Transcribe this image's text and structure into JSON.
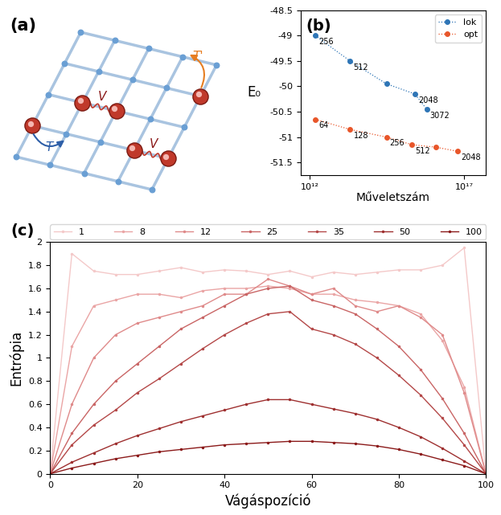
{
  "diagram": {
    "panel_label": "(a)",
    "interaction_labels": [
      "V",
      "V"
    ],
    "hopping_labels": [
      "T",
      "T'"
    ]
  },
  "chart_data": [
    {
      "type": "line",
      "panel_label": "(b)",
      "x_label": "Műveletszám",
      "y_label": "E₀",
      "log": "x",
      "legend": "upper right",
      "grid": false,
      "xlim": [
        500000000000.0,
        5e+17
      ],
      "xticks": [
        {
          "value": 1000000000000.0,
          "label": "10¹²"
        },
        {
          "value": 1e+17,
          "label": "10¹⁷"
        }
      ],
      "ylim": [
        -51.75,
        -48.5
      ],
      "yticks": [
        -51.5,
        -51,
        -50.5,
        -50,
        -49.5,
        -49,
        -48.5
      ],
      "series": [
        {
          "name": "lok",
          "color": "#2e75b6",
          "marker": "o",
          "line_style": "dotted",
          "x": [
            1500000000000.0,
            20000000000000.0,
            300000000000000.0,
            2500000000000000.0,
            6000000000000000.0
          ],
          "values": [
            -49.0,
            -49.5,
            -49.95,
            -50.15,
            -50.45
          ],
          "point_labels": [
            256,
            512,
            null,
            2048,
            3072
          ]
        },
        {
          "name": "opt",
          "color": "#e8562a",
          "marker": "o",
          "line_style": "dotted",
          "x": [
            1500000000000.0,
            20000000000000.0,
            300000000000000.0,
            2000000000000000.0,
            1.2e+16,
            6e+16
          ],
          "values": [
            -50.65,
            -50.85,
            -51.0,
            -51.15,
            -51.2,
            -51.28
          ],
          "point_labels": [
            64,
            128,
            256,
            512,
            null,
            2048
          ]
        }
      ]
    },
    {
      "type": "line",
      "panel_label": "(c)",
      "x_label": "Vágáspozíció",
      "y_label": "Entrópia",
      "legend": "top",
      "grid": false,
      "marker": "point",
      "line_style": "solid",
      "xlim": [
        0,
        100
      ],
      "xticks": [
        0,
        20,
        40,
        60,
        80,
        100
      ],
      "ylim": [
        0,
        2
      ],
      "yticks": [
        0,
        0.2,
        0.4,
        0.6,
        0.8,
        1,
        1.2,
        1.4,
        1.6,
        1.8,
        2
      ],
      "x": [
        0,
        5,
        10,
        15,
        20,
        25,
        30,
        35,
        40,
        45,
        50,
        55,
        60,
        65,
        70,
        75,
        80,
        85,
        90,
        95,
        100
      ],
      "series": [
        {
          "name": "1",
          "color": "#f4c9c9",
          "values": [
            0,
            1.9,
            1.75,
            1.72,
            1.72,
            1.75,
            1.78,
            1.74,
            1.76,
            1.75,
            1.72,
            1.75,
            1.7,
            1.74,
            1.72,
            1.74,
            1.76,
            1.76,
            1.8,
            1.95,
            0
          ]
        },
        {
          "name": "8",
          "color": "#eaa5a5",
          "values": [
            0,
            1.1,
            1.45,
            1.5,
            1.55,
            1.55,
            1.52,
            1.58,
            1.6,
            1.6,
            1.62,
            1.6,
            1.55,
            1.55,
            1.5,
            1.48,
            1.45,
            1.38,
            1.15,
            0.75,
            0
          ]
        },
        {
          "name": "12",
          "color": "#df8a8a",
          "values": [
            0,
            0.6,
            1.0,
            1.2,
            1.3,
            1.35,
            1.4,
            1.45,
            1.55,
            1.55,
            1.68,
            1.62,
            1.55,
            1.6,
            1.45,
            1.4,
            1.45,
            1.35,
            1.2,
            0.7,
            0
          ]
        },
        {
          "name": "25",
          "color": "#c96565",
          "values": [
            0,
            0.35,
            0.6,
            0.8,
            0.95,
            1.1,
            1.25,
            1.35,
            1.45,
            1.55,
            1.6,
            1.62,
            1.5,
            1.45,
            1.38,
            1.25,
            1.1,
            0.9,
            0.65,
            0.35,
            0
          ]
        },
        {
          "name": "35",
          "color": "#b44848",
          "values": [
            0,
            0.25,
            0.42,
            0.55,
            0.7,
            0.82,
            0.95,
            1.08,
            1.2,
            1.3,
            1.38,
            1.4,
            1.25,
            1.2,
            1.12,
            1.0,
            0.85,
            0.68,
            0.48,
            0.25,
            0
          ]
        },
        {
          "name": "50",
          "color": "#9e2f2f",
          "values": [
            0,
            0.1,
            0.18,
            0.26,
            0.33,
            0.39,
            0.45,
            0.5,
            0.55,
            0.6,
            0.64,
            0.64,
            0.6,
            0.56,
            0.52,
            0.47,
            0.4,
            0.32,
            0.22,
            0.11,
            0
          ]
        },
        {
          "name": "100",
          "color": "#8b1a1a",
          "values": [
            0,
            0.05,
            0.09,
            0.13,
            0.16,
            0.19,
            0.21,
            0.23,
            0.25,
            0.26,
            0.27,
            0.28,
            0.28,
            0.27,
            0.26,
            0.24,
            0.21,
            0.17,
            0.12,
            0.07,
            0
          ]
        }
      ]
    }
  ]
}
